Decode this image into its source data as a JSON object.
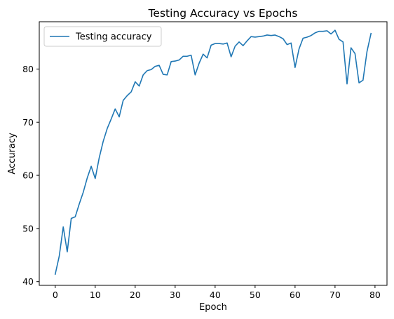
{
  "chart_data": {
    "type": "line",
    "title": "Testing Accuracy vs Epochs",
    "xlabel": "Epoch",
    "ylabel": "Accuracy",
    "xlim": [
      -4,
      83
    ],
    "ylim": [
      39.3,
      88.9
    ],
    "xticks": [
      0,
      10,
      20,
      30,
      40,
      50,
      60,
      70,
      80
    ],
    "yticks": [
      40,
      50,
      60,
      70,
      80
    ],
    "grid": false,
    "legend_position": "top-left",
    "series": [
      {
        "name": "Testing accuracy",
        "color": "#1f77b4",
        "x": [
          0,
          1,
          2,
          3,
          4,
          5,
          6,
          7,
          8,
          9,
          10,
          11,
          12,
          13,
          14,
          15,
          16,
          17,
          18,
          19,
          20,
          21,
          22,
          23,
          24,
          25,
          26,
          27,
          28,
          29,
          30,
          31,
          32,
          33,
          34,
          35,
          36,
          37,
          38,
          39,
          40,
          41,
          42,
          43,
          44,
          45,
          46,
          47,
          48,
          49,
          50,
          51,
          52,
          53,
          54,
          55,
          56,
          57,
          58,
          59,
          60,
          61,
          62,
          63,
          64,
          65,
          66,
          67,
          68,
          69,
          70,
          71,
          72,
          73,
          74,
          75,
          76,
          77,
          78,
          79
        ],
        "values": [
          41.4,
          44.8,
          50.3,
          45.6,
          51.9,
          52.2,
          54.6,
          56.8,
          59.5,
          61.7,
          59.4,
          63.3,
          66.4,
          68.8,
          70.6,
          72.5,
          71.0,
          74.1,
          75.0,
          75.7,
          77.6,
          76.8,
          78.9,
          79.7,
          79.9,
          80.5,
          80.7,
          79.0,
          78.9,
          81.4,
          81.5,
          81.7,
          82.4,
          82.4,
          82.6,
          78.9,
          81.1,
          82.8,
          82.1,
          84.5,
          84.8,
          84.8,
          84.7,
          84.9,
          82.3,
          84.3,
          85.1,
          84.4,
          85.3,
          86.1,
          86.0,
          86.1,
          86.2,
          86.4,
          86.3,
          86.4,
          86.1,
          85.7,
          84.6,
          84.9,
          80.3,
          83.8,
          85.8,
          86.0,
          86.3,
          86.8,
          87.1,
          87.1,
          87.2,
          86.6,
          87.3,
          85.6,
          85.1,
          77.2,
          84.0,
          82.9,
          77.4,
          77.9,
          83.3,
          86.7
        ]
      }
    ]
  }
}
